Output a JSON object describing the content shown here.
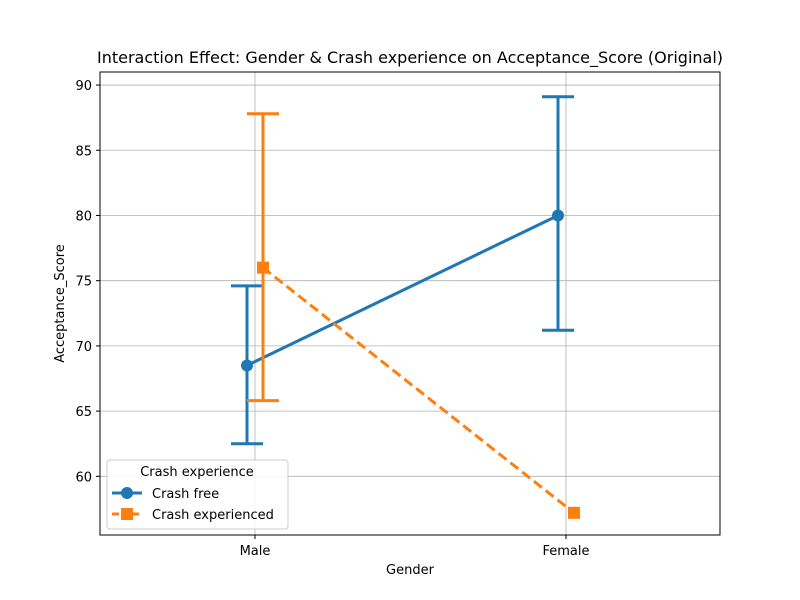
{
  "chart_data": {
    "type": "line",
    "title": "Interaction Effect: Gender & Crash experience on Acceptance_Score (Original)",
    "xlabel": "Gender",
    "ylabel": "Acceptance_Score",
    "categories": [
      "Male",
      "Female"
    ],
    "ylim": [
      55.5,
      91
    ],
    "yticks": [
      60,
      65,
      70,
      75,
      80,
      85,
      90
    ],
    "grid": true,
    "legend": {
      "title": "Crash experience",
      "placement": "lower-left"
    },
    "series": [
      {
        "name": "Crash free",
        "color": "#1f77b4",
        "marker": "circle",
        "linestyle": "solid",
        "values": [
          68.5,
          80.0
        ],
        "ci_low": [
          62.5,
          71.2
        ],
        "ci_high": [
          74.6,
          89.1
        ]
      },
      {
        "name": "Crash experienced",
        "color": "#ff7f0e",
        "marker": "square",
        "linestyle": "dashed",
        "values": [
          76.0,
          57.2
        ],
        "ci_low": [
          65.8,
          null
        ],
        "ci_high": [
          87.8,
          null
        ]
      }
    ]
  }
}
